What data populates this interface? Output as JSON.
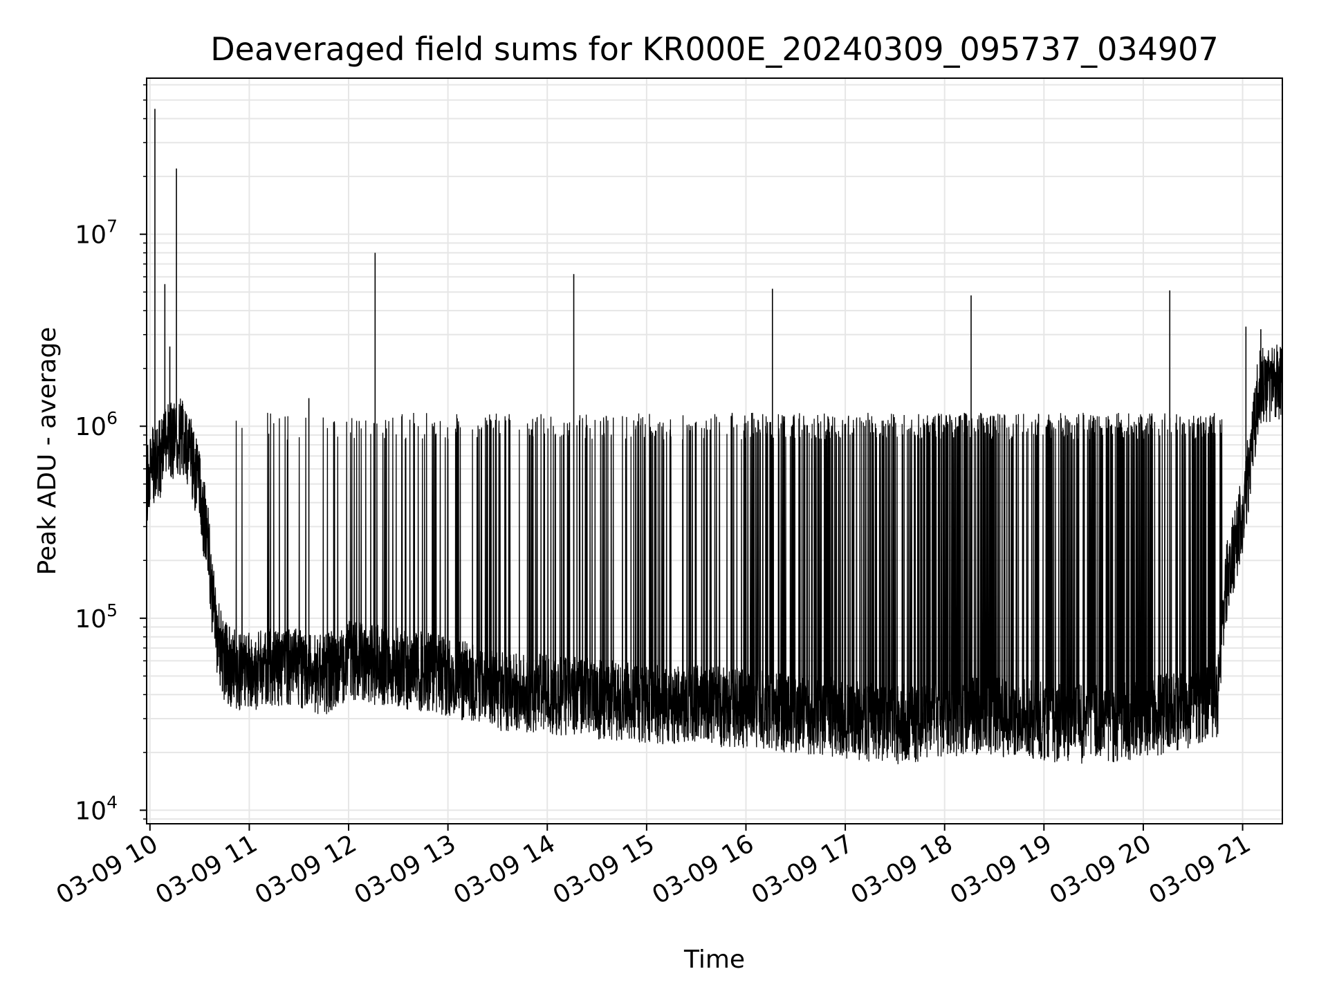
{
  "chart_data": {
    "type": "line",
    "title": "Deaveraged field sums for KR000E_20240309_095737_034907",
    "xlabel": "Time",
    "ylabel": "Peak ADU - average",
    "yscale": "log",
    "grid": true,
    "line_color": "#000000",
    "grid_color": "#e6e6e6",
    "xlim": [
      "2024-03-09 09:58",
      "2024-03-09 21:24"
    ],
    "ylim": [
      8500,
      65000000
    ],
    "x_ticks": [
      {
        "label": "03-09 10",
        "time": "2024-03-09 10:00"
      },
      {
        "label": "03-09 11",
        "time": "2024-03-09 11:00"
      },
      {
        "label": "03-09 12",
        "time": "2024-03-09 12:00"
      },
      {
        "label": "03-09 13",
        "time": "2024-03-09 13:00"
      },
      {
        "label": "03-09 14",
        "time": "2024-03-09 14:00"
      },
      {
        "label": "03-09 15",
        "time": "2024-03-09 15:00"
      },
      {
        "label": "03-09 16",
        "time": "2024-03-09 16:00"
      },
      {
        "label": "03-09 17",
        "time": "2024-03-09 17:00"
      },
      {
        "label": "03-09 18",
        "time": "2024-03-09 18:00"
      },
      {
        "label": "03-09 19",
        "time": "2024-03-09 19:00"
      },
      {
        "label": "03-09 20",
        "time": "2024-03-09 20:00"
      },
      {
        "label": "03-09 21",
        "time": "2024-03-09 21:00"
      }
    ],
    "y_ticks": [
      {
        "base": "10",
        "exp": "4",
        "value": 10000
      },
      {
        "base": "10",
        "exp": "5",
        "value": 100000
      },
      {
        "base": "10",
        "exp": "6",
        "value": 1000000
      },
      {
        "base": "10",
        "exp": "7",
        "value": 10000000
      }
    ],
    "series": [
      {
        "x": [
          "2024-03-09 09:58",
          "2024-03-09 10:00",
          "2024-03-09 10:05",
          "2024-03-09 10:10",
          "2024-03-09 10:15",
          "2024-03-09 10:20",
          "2024-03-09 10:25",
          "2024-03-09 10:30",
          "2024-03-09 10:35",
          "2024-03-09 10:38",
          "2024-03-09 10:40",
          "2024-03-09 10:45",
          "2024-03-09 10:50",
          "2024-03-09 11:00",
          "2024-03-09 11:15",
          "2024-03-09 11:30",
          "2024-03-09 11:45",
          "2024-03-09 12:00",
          "2024-03-09 12:30",
          "2024-03-09 13:00",
          "2024-03-09 13:30",
          "2024-03-09 14:00",
          "2024-03-09 14:30",
          "2024-03-09 15:00",
          "2024-03-09 15:30",
          "2024-03-09 16:00",
          "2024-03-09 16:30",
          "2024-03-09 17:00",
          "2024-03-09 17:30",
          "2024-03-09 18:00",
          "2024-03-09 18:30",
          "2024-03-09 19:00",
          "2024-03-09 19:30",
          "2024-03-09 20:00",
          "2024-03-09 20:30",
          "2024-03-09 20:45",
          "2024-03-09 20:50",
          "2024-03-09 21:00",
          "2024-03-09 21:05",
          "2024-03-09 21:10",
          "2024-03-09 21:24"
        ],
        "y": [
          500000,
          600000,
          650000,
          800000,
          850000,
          900000,
          700000,
          450000,
          250000,
          120000,
          85000,
          60000,
          55000,
          52000,
          55000,
          55000,
          50000,
          60000,
          55000,
          50000,
          42000,
          40000,
          38000,
          36000,
          35000,
          34000,
          32000,
          30000,
          28000,
          30000,
          31000,
          29000,
          28000,
          30000,
          34000,
          38000,
          150000,
          350000,
          700000,
          1600000,
          1700000
        ]
      }
    ],
    "spikes": [
      {
        "x": "2024-03-09 10:03",
        "y": 45000000
      },
      {
        "x": "2024-03-09 10:09",
        "y": 5500000
      },
      {
        "x": "2024-03-09 10:12",
        "y": 2600000
      },
      {
        "x": "2024-03-09 10:16",
        "y": 22000000
      },
      {
        "x": "2024-03-09 11:36",
        "y": 1400000
      },
      {
        "x": "2024-03-09 11:51",
        "y": 1050000
      },
      {
        "x": "2024-03-09 12:16",
        "y": 8000000
      },
      {
        "x": "2024-03-09 14:16",
        "y": 6200000
      },
      {
        "x": "2024-03-09 16:16",
        "y": 5200000
      },
      {
        "x": "2024-03-09 18:16",
        "y": 4800000
      },
      {
        "x": "2024-03-09 20:16",
        "y": 5100000
      },
      {
        "x": "2024-03-09 21:02",
        "y": 3300000
      },
      {
        "x": "2024-03-09 21:11",
        "y": 3200000
      }
    ]
  }
}
